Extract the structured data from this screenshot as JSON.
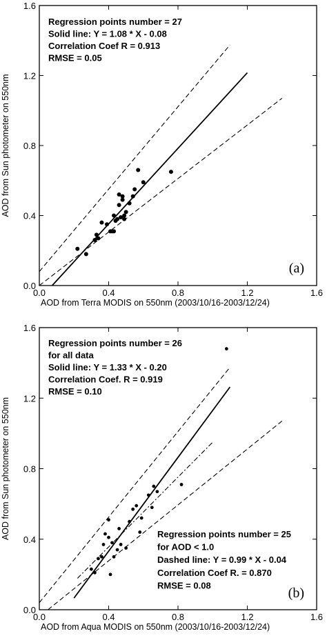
{
  "chart_data": [
    {
      "type": "scatter",
      "panel_label": "(a)",
      "xlabel": "AOD from Terra MODIS on 550nm (2003/10/16-2003/12/24)",
      "ylabel": "AOD from Sun photometer on 550nm",
      "xlim": [
        0.0,
        1.6
      ],
      "ylim": [
        0.0,
        1.6
      ],
      "xticks": [
        "0.0",
        "0.4",
        "0.8",
        "1.2",
        "1.6"
      ],
      "yticks": [
        "0.0",
        "0.4",
        "0.8",
        "1.2",
        "1.6"
      ],
      "annotations": [
        "Regression points number = 27",
        "Solid line:  Y = 1.08 * X - 0.08",
        "Correlation Coef   R = 0.913",
        "RMSE = 0.05"
      ],
      "points": [
        [
          0.22,
          0.21
        ],
        [
          0.27,
          0.18
        ],
        [
          0.32,
          0.26
        ],
        [
          0.33,
          0.29
        ],
        [
          0.34,
          0.27
        ],
        [
          0.36,
          0.36
        ],
        [
          0.39,
          0.35
        ],
        [
          0.41,
          0.31
        ],
        [
          0.42,
          0.31
        ],
        [
          0.43,
          0.31
        ],
        [
          0.43,
          0.4
        ],
        [
          0.44,
          0.37
        ],
        [
          0.45,
          0.38
        ],
        [
          0.46,
          0.46
        ],
        [
          0.46,
          0.52
        ],
        [
          0.47,
          0.39
        ],
        [
          0.48,
          0.49
        ],
        [
          0.48,
          0.51
        ],
        [
          0.49,
          0.4
        ],
        [
          0.49,
          0.38
        ],
        [
          0.5,
          0.42
        ],
        [
          0.52,
          0.47
        ],
        [
          0.54,
          0.51
        ],
        [
          0.55,
          0.55
        ],
        [
          0.57,
          0.66
        ],
        [
          0.6,
          0.59
        ],
        [
          0.76,
          0.65
        ]
      ],
      "lines": [
        {
          "style": "solid",
          "from": [
            0.074,
            0.0
          ],
          "to": [
            1.2,
            1.216
          ]
        },
        {
          "style": "dashed",
          "from": [
            0.0,
            0.08
          ],
          "to": [
            1.1,
            1.375
          ]
        },
        {
          "style": "dashed",
          "from": [
            0.0,
            0.0
          ],
          "to": [
            1.4,
            1.07
          ]
        }
      ]
    },
    {
      "type": "scatter",
      "panel_label": "(b)",
      "xlabel": "AOD from Aqua MODIS on 550nm (2003/10/16-2003/12/24)",
      "ylabel": "AOD from Sun photometer on 550nm",
      "xlim": [
        0.0,
        1.6
      ],
      "ylim": [
        0.0,
        1.6
      ],
      "xticks": [
        "0.0",
        "0.4",
        "0.8",
        "1.2",
        "1.6"
      ],
      "yticks": [
        "0.0",
        "0.4",
        "0.8",
        "1.2",
        "1.6"
      ],
      "annotations": [
        "Regression points number = 26",
        "for all data",
        "Solid line:  Y = 1.33 * X - 0.20",
        "Correlation Coef.  R = 0.919",
        "RMSE = 0.10"
      ],
      "annotations_lower": [
        "Regression points number = 25",
        "for AOD < 1.0",
        "Dashed line:  Y = 0.99 * X - 0.04",
        "Correlation Coef  R. = 0.870",
        "RMSE = 0.08"
      ],
      "points": [
        [
          0.3,
          0.23
        ],
        [
          0.32,
          0.21
        ],
        [
          0.34,
          0.29
        ],
        [
          0.36,
          0.3
        ],
        [
          0.37,
          0.37
        ],
        [
          0.38,
          0.43
        ],
        [
          0.4,
          0.41
        ],
        [
          0.4,
          0.51
        ],
        [
          0.41,
          0.2
        ],
        [
          0.42,
          0.38
        ],
        [
          0.43,
          0.3
        ],
        [
          0.45,
          0.34
        ],
        [
          0.46,
          0.46
        ],
        [
          0.47,
          0.37
        ],
        [
          0.5,
          0.35
        ],
        [
          0.52,
          0.5
        ],
        [
          0.54,
          0.57
        ],
        [
          0.56,
          0.59
        ],
        [
          0.58,
          0.44
        ],
        [
          0.59,
          0.52
        ],
        [
          0.63,
          0.65
        ],
        [
          0.65,
          0.58
        ],
        [
          0.66,
          0.7
        ],
        [
          0.68,
          0.67
        ],
        [
          0.82,
          0.71
        ],
        [
          1.08,
          1.48
        ]
      ],
      "lines": [
        {
          "style": "solid",
          "from": [
            0.2,
            0.066
          ],
          "to": [
            1.1,
            1.263
          ]
        },
        {
          "style": "dashdot",
          "from": [
            0.22,
            0.178
          ],
          "to": [
            1.0,
            0.95
          ]
        },
        {
          "style": "dashed",
          "from": [
            0.0,
            0.04
          ],
          "to": [
            1.1,
            1.375
          ]
        },
        {
          "style": "dashed",
          "from": [
            0.05,
            0.0
          ],
          "to": [
            1.4,
            1.07
          ]
        }
      ]
    }
  ]
}
